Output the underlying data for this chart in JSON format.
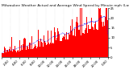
{
  "title": "Milwaukee Weather Actual and Average Wind Speed by Minute mph (Last 24 Hours)",
  "n_points": 1440,
  "ylim": [
    0,
    25
  ],
  "bar_color": "#ff0000",
  "line_color": "#0000ff",
  "background_color": "#ffffff",
  "grid_color": "#c8c8c8",
  "title_fontsize": 3.2,
  "tick_fontsize": 2.8,
  "seed": 42,
  "yticks": [
    0,
    5,
    10,
    15,
    20,
    25
  ],
  "n_gridlines": 13
}
